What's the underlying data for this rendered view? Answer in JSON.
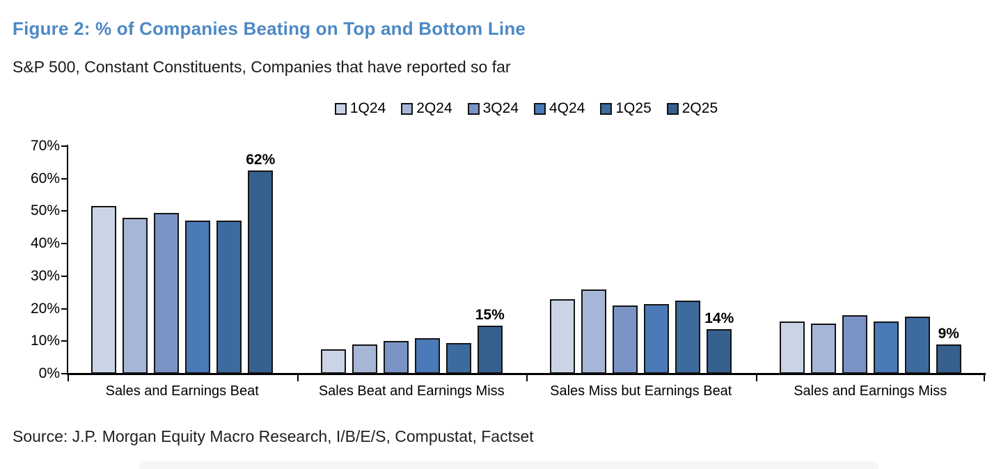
{
  "header": {
    "title": "Figure 2: % of Companies Beating on Top and Bottom Line",
    "subtitle": "S&P 500, Constant Constituents, Companies that have reported so far"
  },
  "source": "Source: J.P. Morgan Equity Macro Research, I/B/E/S, Compustat, Factset",
  "colors": {
    "title_accent": "#4d89c4",
    "bar_border": "#141414",
    "axis": "#000000",
    "text": "#000000"
  },
  "chart_data": {
    "type": "bar",
    "title": "Figure 2: % of Companies Beating on Top and Bottom Line",
    "subtitle": "S&P 500, Constant Constituents, Companies that have reported so far",
    "categories": [
      "Sales and Earnings Beat",
      "Sales Beat and Earnings Miss",
      "Sales Miss but Earnings Beat",
      "Sales and Earnings Miss"
    ],
    "series": [
      {
        "name": "1Q24",
        "color": "#cad4e6",
        "values": [
          51.5,
          7.5,
          23,
          16
        ]
      },
      {
        "name": "2Q24",
        "color": "#a6b6d6",
        "values": [
          48,
          9,
          26,
          15.5
        ]
      },
      {
        "name": "3Q24",
        "color": "#7a94c6",
        "values": [
          49.5,
          10,
          21,
          18
        ]
      },
      {
        "name": "4Q24",
        "color": "#4a7ab8",
        "values": [
          47,
          11,
          21.5,
          16
        ]
      },
      {
        "name": "1Q25",
        "color": "#3e6b9e",
        "values": [
          47,
          9.5,
          22.5,
          17.5
        ]
      },
      {
        "name": "2Q25",
        "color": "#36608e",
        "values": [
          62.5,
          14.7,
          13.8,
          9
        ]
      }
    ],
    "value_labels": {
      "series": "2Q25",
      "labels": [
        "62%",
        "15%",
        "14%",
        "9%"
      ]
    },
    "ylim": [
      0,
      70
    ],
    "ytick_labels": [
      "0%",
      "10%",
      "20%",
      "30%",
      "40%",
      "50%",
      "60%",
      "70%"
    ],
    "xlabel": "",
    "ylabel": "",
    "grid": false,
    "legend_position": "top-center"
  }
}
